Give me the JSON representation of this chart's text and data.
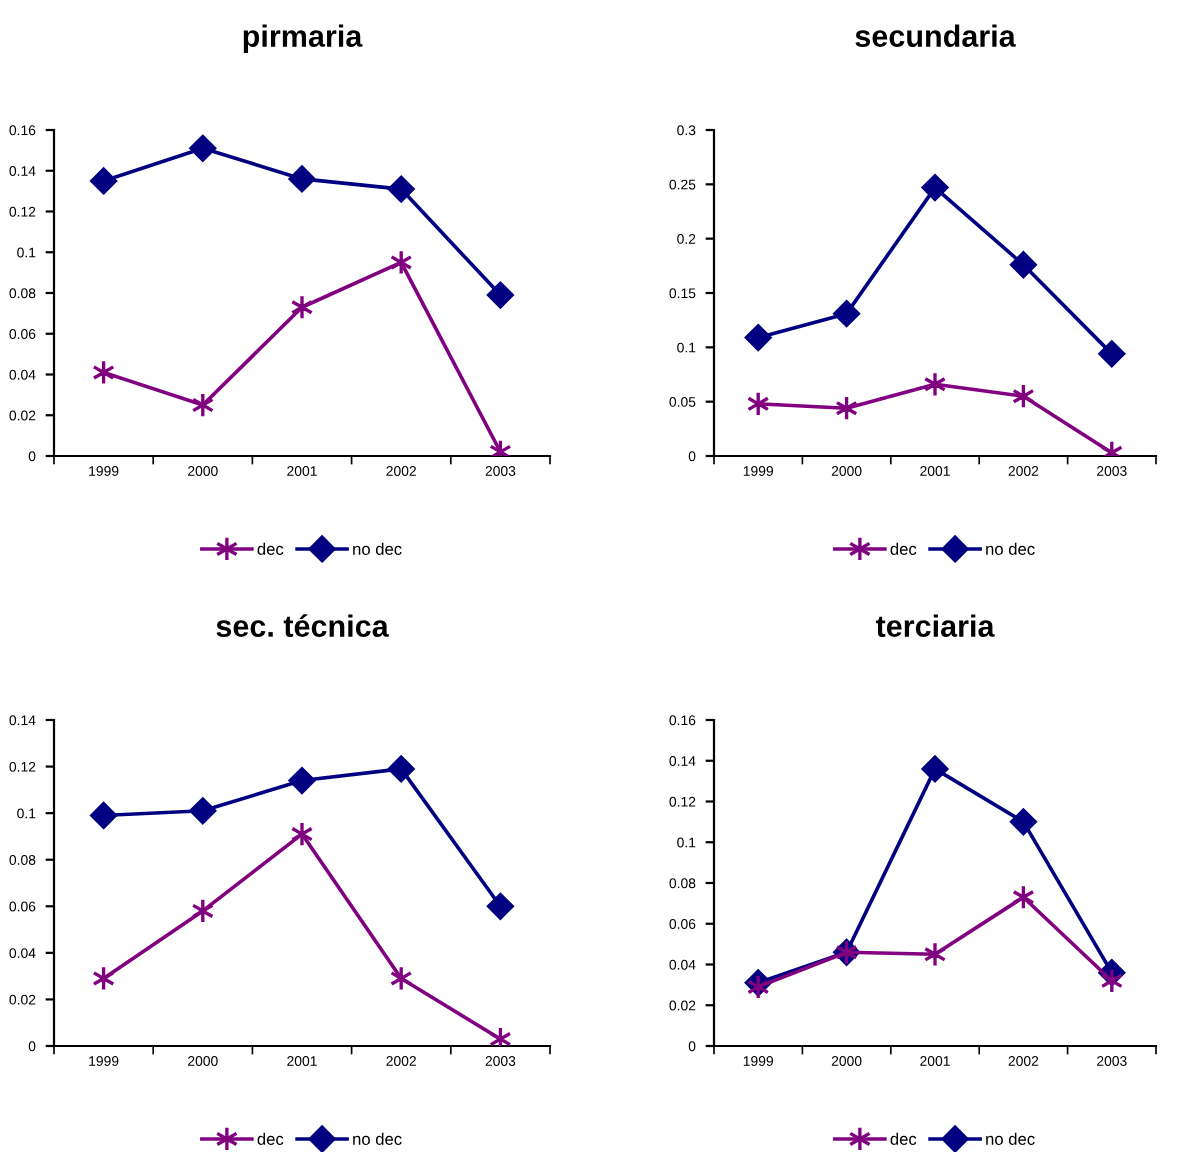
{
  "chart_data": [
    {
      "type": "line",
      "title": "pirmaria",
      "categories": [
        "1999",
        "2000",
        "2001",
        "2002",
        "2003"
      ],
      "ylim": [
        0,
        0.16
      ],
      "yticks": [
        0,
        0.02,
        0.04,
        0.06,
        0.08,
        0.1,
        0.12,
        0.14,
        0.16
      ],
      "grid": false,
      "legend": "bottom",
      "series": [
        {
          "name": "dec",
          "color": "#800080",
          "marker": "cross",
          "values": [
            0.041,
            0.025,
            0.073,
            0.095,
            0.002
          ]
        },
        {
          "name": "no dec",
          "color": "#000080",
          "marker": "diamond",
          "values": [
            0.135,
            0.151,
            0.136,
            0.131,
            0.079
          ]
        }
      ]
    },
    {
      "type": "line",
      "title": "secundaria",
      "categories": [
        "1999",
        "2000",
        "2001",
        "2002",
        "2003"
      ],
      "ylim": [
        0,
        0.3
      ],
      "yticks": [
        0,
        0.05,
        0.1,
        0.15,
        0.2,
        0.25,
        0.3
      ],
      "grid": false,
      "legend": "bottom",
      "series": [
        {
          "name": "dec",
          "color": "#800080",
          "marker": "cross",
          "values": [
            0.048,
            0.044,
            0.066,
            0.055,
            0.003
          ]
        },
        {
          "name": "no dec",
          "color": "#000080",
          "marker": "diamond",
          "values": [
            0.109,
            0.131,
            0.247,
            0.176,
            0.094
          ]
        }
      ]
    },
    {
      "type": "line",
      "title": "sec. técnica",
      "categories": [
        "1999",
        "2000",
        "2001",
        "2002",
        "2003"
      ],
      "ylim": [
        0,
        0.14
      ],
      "yticks": [
        0,
        0.02,
        0.04,
        0.06,
        0.08,
        0.1,
        0.12,
        0.14
      ],
      "grid": false,
      "legend": "bottom",
      "series": [
        {
          "name": "dec",
          "color": "#800080",
          "marker": "cross",
          "values": [
            0.029,
            0.058,
            0.091,
            0.029,
            0.003
          ]
        },
        {
          "name": "no dec",
          "color": "#000080",
          "marker": "diamond",
          "values": [
            0.099,
            0.101,
            0.114,
            0.119,
            0.06
          ]
        }
      ]
    },
    {
      "type": "line",
      "title": "terciaria",
      "categories": [
        "1999",
        "2000",
        "2001",
        "2002",
        "2003"
      ],
      "ylim": [
        0,
        0.16
      ],
      "yticks": [
        0,
        0.02,
        0.04,
        0.06,
        0.08,
        0.1,
        0.12,
        0.14,
        0.16
      ],
      "grid": false,
      "legend": "bottom",
      "series": [
        {
          "name": "dec",
          "color": "#800080",
          "marker": "cross",
          "values": [
            0.029,
            0.046,
            0.045,
            0.073,
            0.032
          ]
        },
        {
          "name": "no dec",
          "color": "#000080",
          "marker": "diamond",
          "values": [
            0.031,
            0.046,
            0.136,
            0.11,
            0.036
          ]
        }
      ]
    }
  ]
}
